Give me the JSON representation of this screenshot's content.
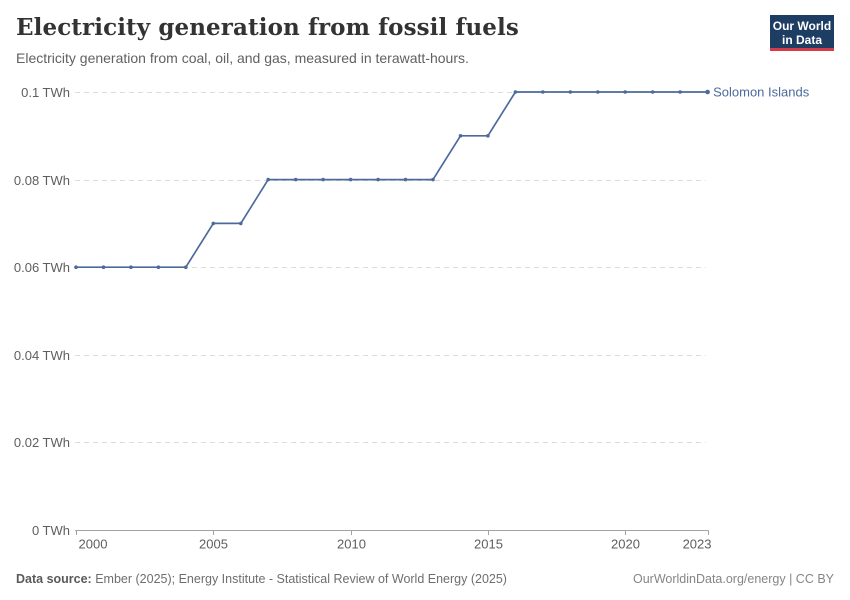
{
  "header": {
    "title": "Electricity generation from fossil fuels",
    "subtitle": "Electricity generation from coal, oil, and gas, measured in terawatt-hours.",
    "logo": {
      "line1": "Our World",
      "line2": "in Data",
      "bg_color": "#1d3d63",
      "accent_color": "#d73a49"
    }
  },
  "chart_data": {
    "type": "line",
    "title": "Electricity generation from fossil fuels",
    "subtitle": "Electricity generation from coal, oil, and gas, measured in terawatt-hours.",
    "unit": "TWh",
    "x": [
      2000,
      2001,
      2002,
      2003,
      2004,
      2005,
      2006,
      2007,
      2008,
      2009,
      2010,
      2011,
      2012,
      2013,
      2014,
      2015,
      2016,
      2017,
      2018,
      2019,
      2020,
      2021,
      2022,
      2023
    ],
    "series": [
      {
        "name": "Solomon Islands",
        "color": "#4c6a9c",
        "values": [
          0.06,
          0.06,
          0.06,
          0.06,
          0.06,
          0.07,
          0.07,
          0.08,
          0.08,
          0.08,
          0.08,
          0.08,
          0.08,
          0.08,
          0.09,
          0.09,
          0.1,
          0.1,
          0.1,
          0.1,
          0.1,
          0.1,
          0.1,
          0.1
        ]
      }
    ],
    "xlabel": "",
    "ylabel": "",
    "ylim": [
      0,
      0.1
    ],
    "yticks": [
      {
        "value": 0,
        "label": "0 TWh"
      },
      {
        "value": 0.02,
        "label": "0.02 TWh"
      },
      {
        "value": 0.04,
        "label": "0.04 TWh"
      },
      {
        "value": 0.06,
        "label": "0.06 TWh"
      },
      {
        "value": 0.08,
        "label": "0.08 TWh"
      },
      {
        "value": 0.1,
        "label": "0.1 TWh"
      }
    ],
    "xticks": [
      {
        "value": 2000,
        "label": "2000"
      },
      {
        "value": 2005,
        "label": "2005"
      },
      {
        "value": 2010,
        "label": "2010"
      },
      {
        "value": 2015,
        "label": "2015"
      },
      {
        "value": 2020,
        "label": "2020"
      },
      {
        "value": 2023,
        "label": "2023"
      }
    ],
    "grid": "dashed-horizontal",
    "legend_position": "end-of-line-label",
    "colors": {
      "gridline": "#dcdcdc",
      "axis": "#a3a3a3",
      "tick_label": "#5e5e5e"
    }
  },
  "footer": {
    "datasource_label": "Data source:",
    "datasource_text": "Ember (2025); Energy Institute - Statistical Review of World Energy (2025)",
    "link_text": "OurWorldinData.org/energy | CC BY"
  }
}
